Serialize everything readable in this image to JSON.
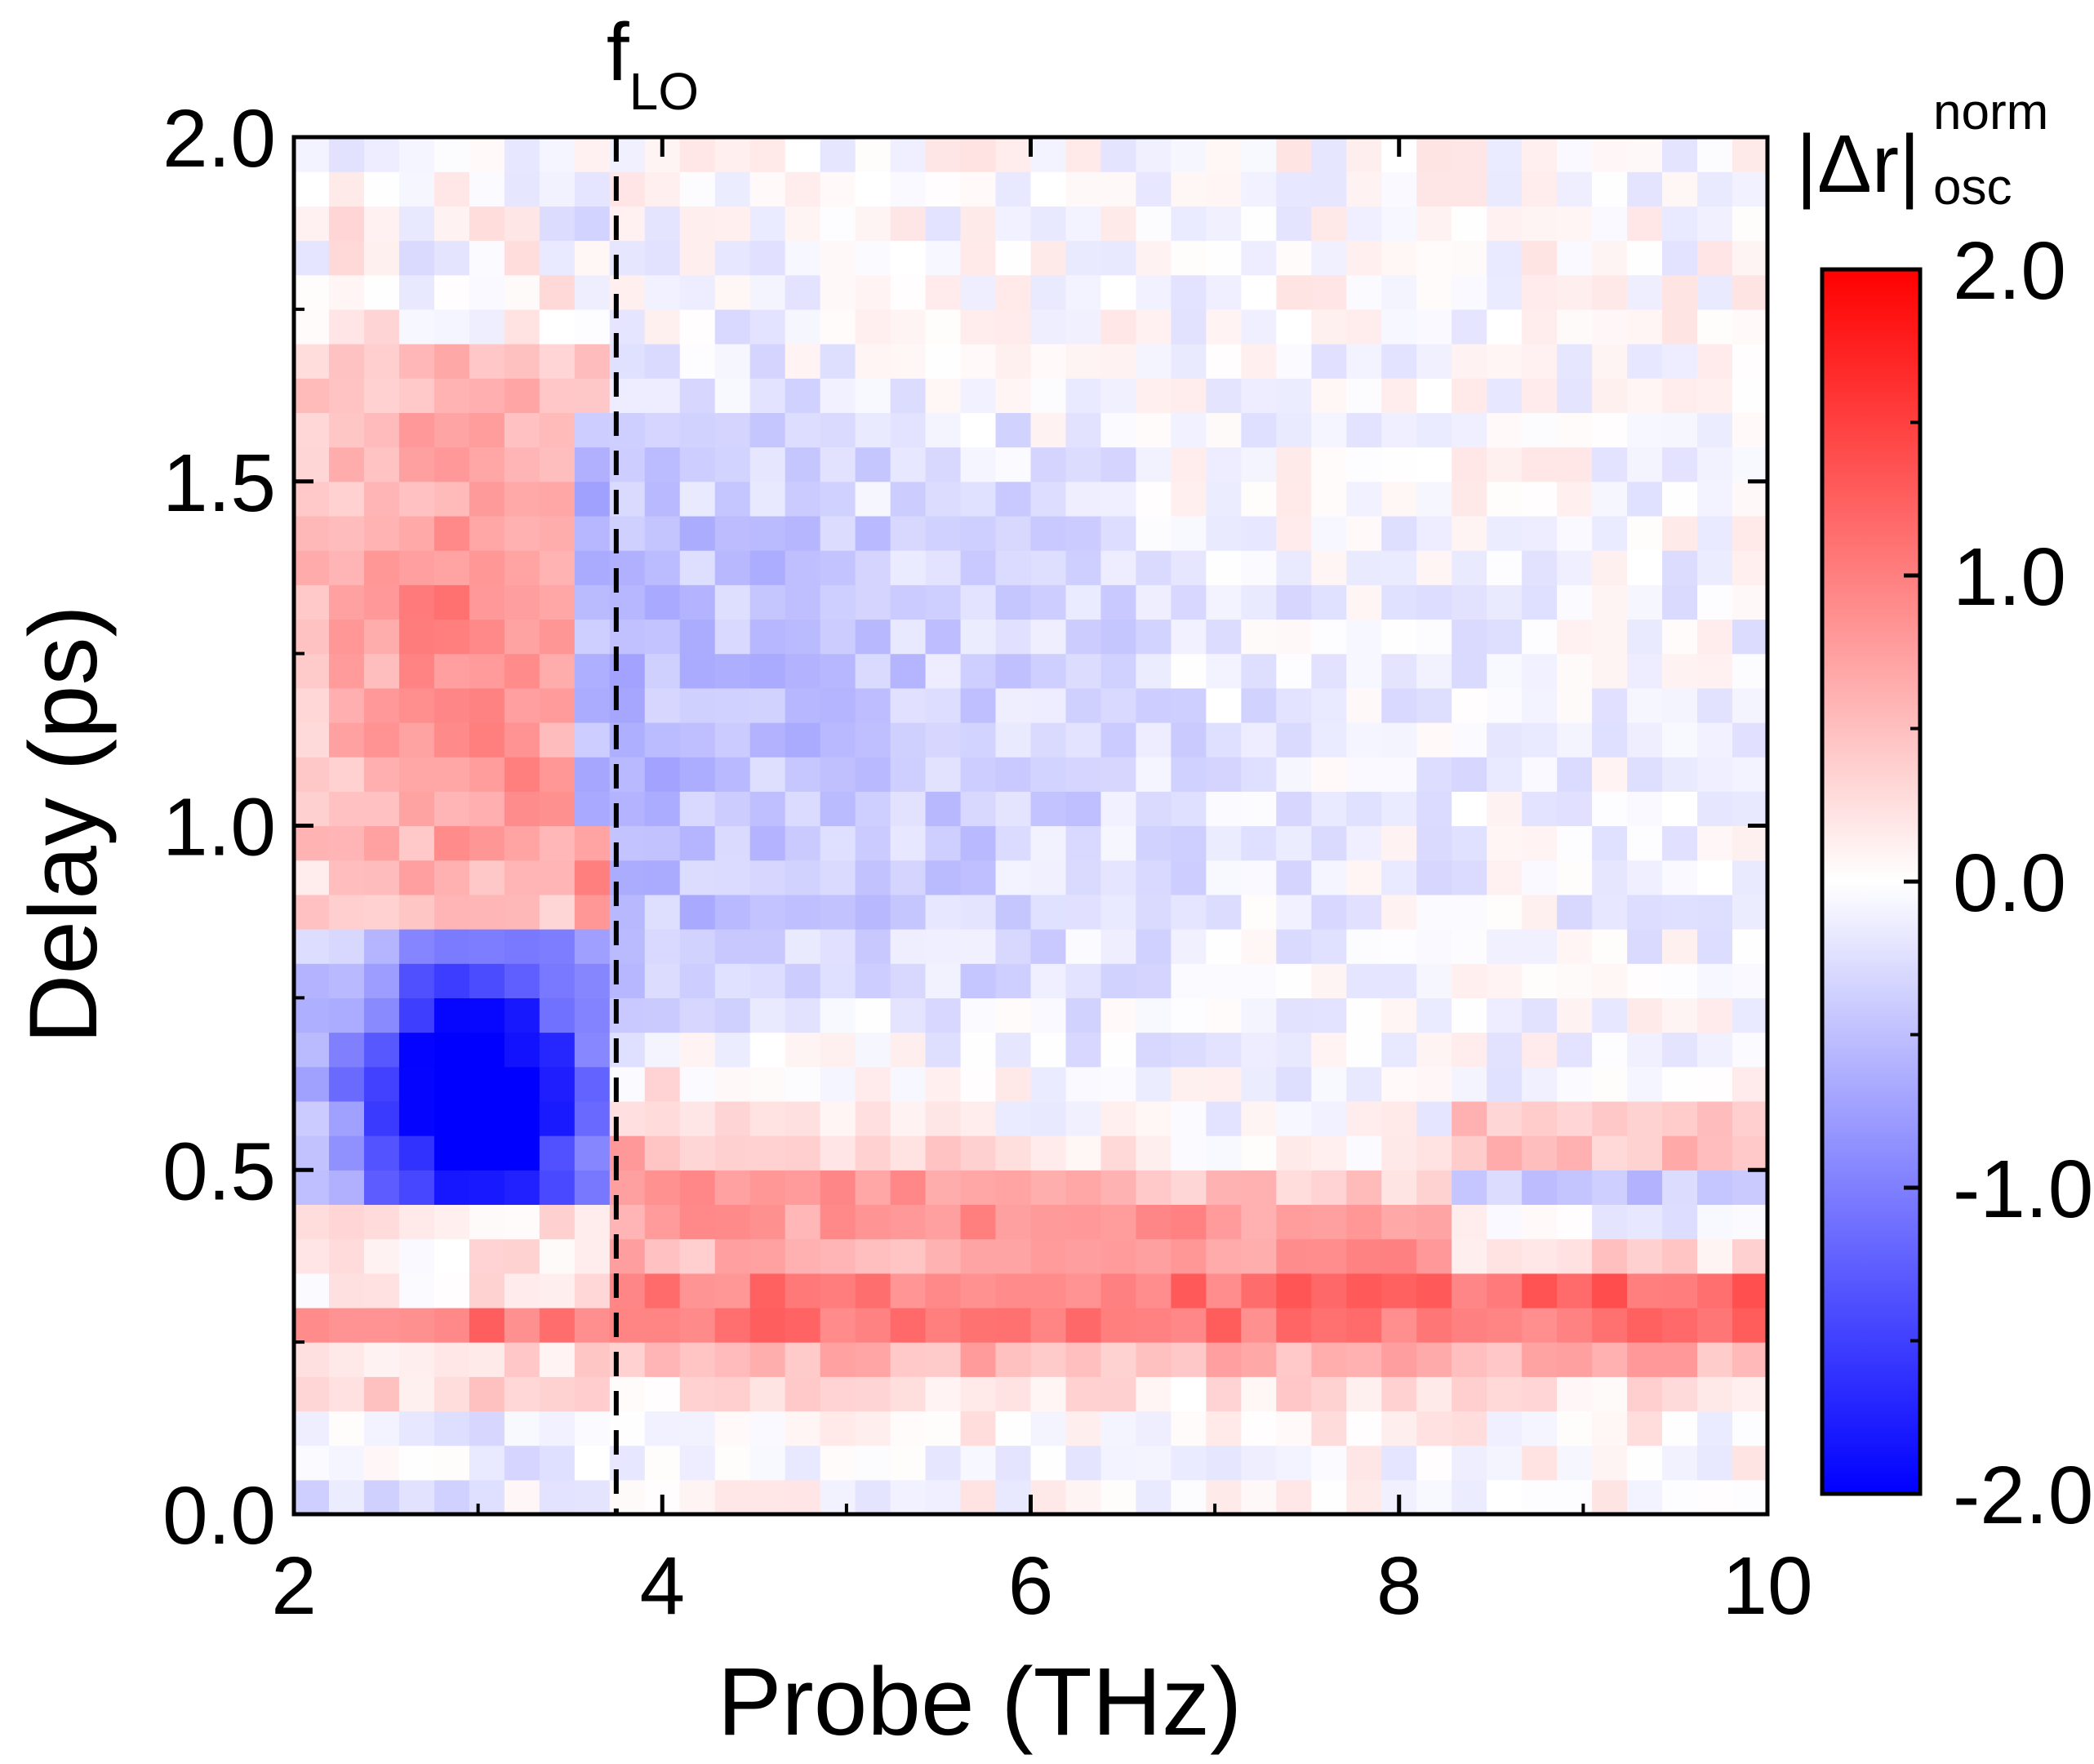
{
  "chart_data": {
    "type": "heatmap",
    "title": "",
    "xlabel": "Probe (THz)",
    "ylabel": "Delay (ps)",
    "xlim": [
      2,
      10
    ],
    "ylim": [
      0,
      2
    ],
    "xticks": [
      2,
      4,
      6,
      8,
      10
    ],
    "xtick_labels": [
      "2",
      "4",
      "6",
      "8",
      "10"
    ],
    "yticks": [
      0,
      0.5,
      1,
      1.5,
      2
    ],
    "ytick_labels": [
      "0.0",
      "0.5",
      "1.0",
      "1.5",
      "2.0"
    ],
    "annotation": {
      "text": "f",
      "subscript": "LO",
      "x": 3.75,
      "style": "dashed vertical line"
    },
    "colorbar": {
      "label_main": "|Δr|",
      "label_sup": "norm",
      "label_sub": "osc",
      "range": [
        -2,
        2
      ],
      "ticks": [
        2,
        1,
        0,
        -1,
        -2
      ],
      "tick_labels": [
        "2.0",
        "1.0",
        "0.0",
        "-1.0",
        "-2.0"
      ],
      "colormap": "blue-white-red",
      "color_low": "#0000ff",
      "color_mid": "#ffffff",
      "color_high": "#ff0000"
    },
    "grid": {
      "x_range": [
        2,
        10
      ],
      "y_range": [
        0,
        2
      ],
      "nx": 42,
      "ny": 40,
      "description": "Approximate normalized oscillatory reflectivity: strong positive band at ~0.25-0.45 ps across all probe frequencies, strong negative region at 2.4-3.5 THz / 0.5-0.8 ps, positive region at 2-3.75 THz / 0.9-1.7 ps, weak negative broad region for >3.75 THz / 0.8-1.5 ps."
    }
  }
}
